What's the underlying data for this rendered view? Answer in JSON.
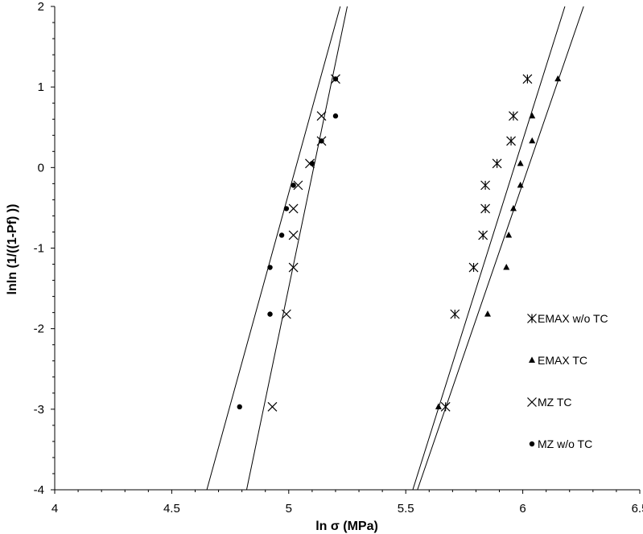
{
  "chart_data": {
    "type": "scatter",
    "title": "",
    "xlabel": "ln σ (MPa)",
    "ylabel": "lnln (1/((1-Pf) ))",
    "xlim": [
      4,
      6.5
    ],
    "ylim": [
      -4,
      2
    ],
    "xticks": [
      "4",
      "4.5",
      "5",
      "5.5",
      "6",
      "6.5"
    ],
    "yticks": [
      "-4",
      "-3",
      "-2",
      "-1",
      "0",
      "1",
      "2"
    ],
    "grid": false,
    "legend_position": "right",
    "series": [
      {
        "name": "EMAX w/o TC",
        "marker": "asterisk",
        "points": [
          [
            5.67,
            -2.97
          ],
          [
            5.71,
            -1.82
          ],
          [
            5.79,
            -1.24
          ],
          [
            5.83,
            -0.84
          ],
          [
            5.84,
            -0.51
          ],
          [
            5.84,
            -0.22
          ],
          [
            5.89,
            0.05
          ],
          [
            5.95,
            0.33
          ],
          [
            5.96,
            0.64
          ],
          [
            6.02,
            1.1
          ]
        ],
        "fit_line": [
          [
            5.53,
            -4.0
          ],
          [
            6.18,
            2.0
          ]
        ]
      },
      {
        "name": "EMAX TC",
        "marker": "triangle",
        "points": [
          [
            5.64,
            -2.97
          ],
          [
            5.85,
            -1.82
          ],
          [
            5.93,
            -1.24
          ],
          [
            5.94,
            -0.84
          ],
          [
            5.96,
            -0.51
          ],
          [
            5.99,
            -0.22
          ],
          [
            5.99,
            0.05
          ],
          [
            6.04,
            0.33
          ],
          [
            6.04,
            0.64
          ],
          [
            6.15,
            1.1
          ]
        ],
        "fit_line": [
          [
            5.55,
            -4.0
          ],
          [
            6.26,
            2.0
          ]
        ]
      },
      {
        "name": "MZ TC",
        "marker": "x",
        "points": [
          [
            4.93,
            -2.97
          ],
          [
            4.99,
            -1.82
          ],
          [
            5.02,
            -1.24
          ],
          [
            5.02,
            -0.84
          ],
          [
            5.02,
            -0.51
          ],
          [
            5.04,
            -0.22
          ],
          [
            5.09,
            0.05
          ],
          [
            5.14,
            0.33
          ],
          [
            5.14,
            0.64
          ],
          [
            5.2,
            1.1
          ]
        ],
        "fit_line": [
          [
            4.82,
            -4.0
          ],
          [
            5.25,
            2.0
          ]
        ]
      },
      {
        "name": "MZ w/o TC",
        "marker": "dot",
        "points": [
          [
            4.79,
            -2.97
          ],
          [
            4.92,
            -1.82
          ],
          [
            4.92,
            -1.24
          ],
          [
            4.97,
            -0.84
          ],
          [
            4.99,
            -0.51
          ],
          [
            5.02,
            -0.22
          ],
          [
            5.1,
            0.05
          ],
          [
            5.14,
            0.33
          ],
          [
            5.2,
            0.64
          ],
          [
            5.2,
            1.1
          ]
        ],
        "fit_line": [
          [
            4.65,
            -4.0
          ],
          [
            5.22,
            2.0
          ]
        ]
      }
    ]
  }
}
